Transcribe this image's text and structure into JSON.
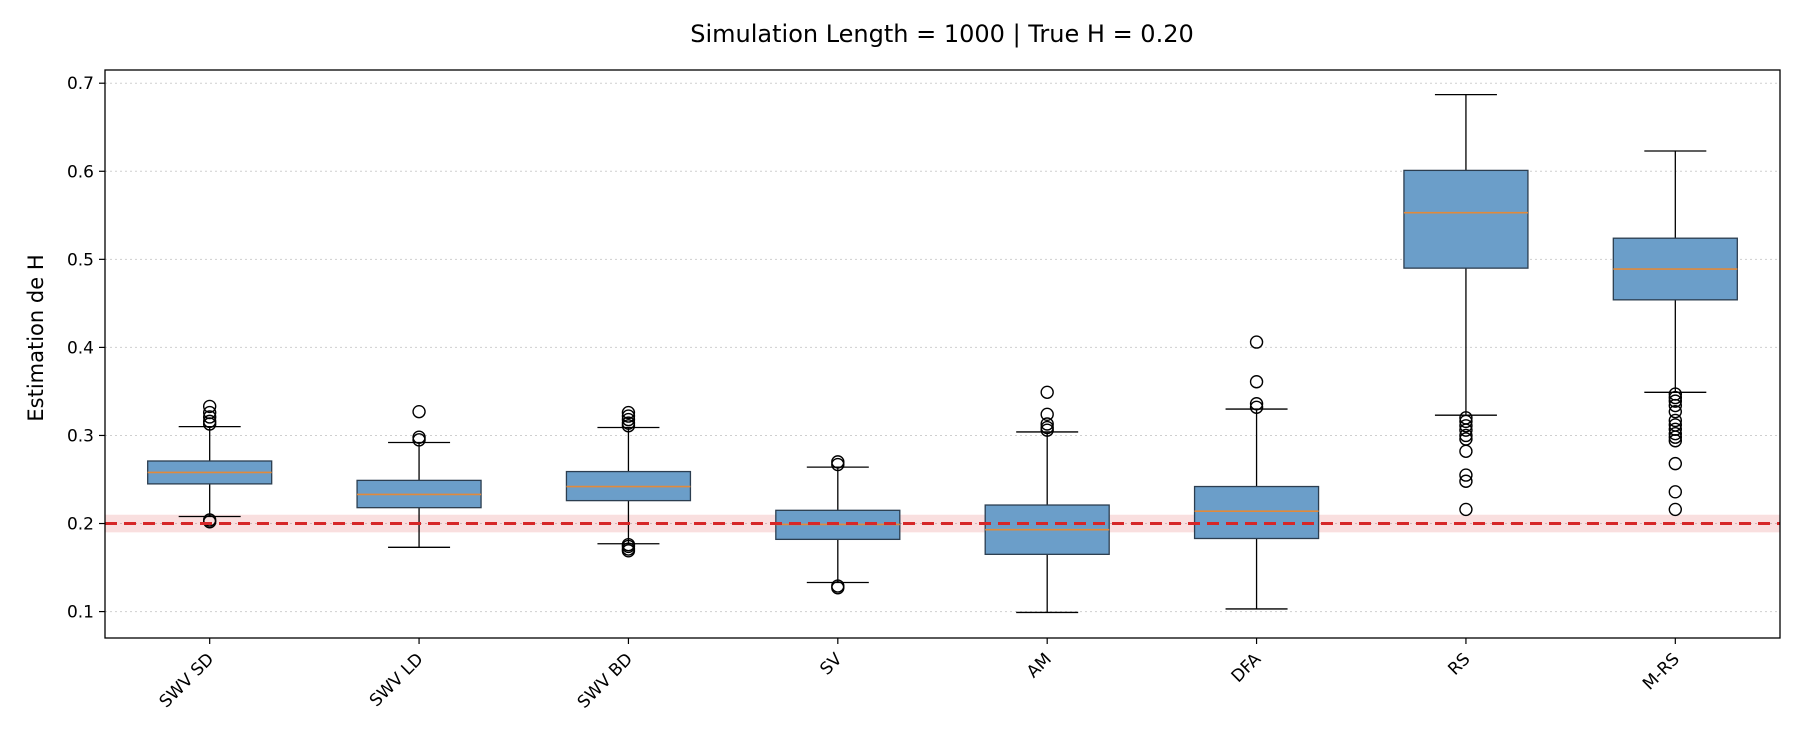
{
  "chart_data": {
    "type": "box",
    "title": "Simulation Length = 1000  |  True H = 0.20",
    "xlabel": "",
    "ylabel": "Estimation de H",
    "ylim": [
      0.07,
      0.715
    ],
    "yticks": [
      "0.1",
      "0.2",
      "0.3",
      "0.4",
      "0.5",
      "0.6",
      "0.7"
    ],
    "grid": "horizontal-dotted",
    "reference_line": {
      "value": 0.2,
      "band": [
        0.19,
        0.21
      ],
      "color": "#d62728",
      "style": "dashed"
    },
    "box_color": "#6b9ec9",
    "median_color": "#e08a3c",
    "categories": [
      "SWV SD",
      "SWV LD",
      "SWV BD",
      "SV",
      "AM",
      "DFA",
      "RS",
      "M-RS"
    ],
    "boxes": [
      {
        "label": "SWV SD",
        "whislo": 0.208,
        "q1": 0.245,
        "med": 0.258,
        "q3": 0.271,
        "whishi": 0.31,
        "fliers": [
          0.204,
          0.202,
          0.313,
          0.316,
          0.321,
          0.326,
          0.333
        ]
      },
      {
        "label": "SWV LD",
        "whislo": 0.173,
        "q1": 0.218,
        "med": 0.233,
        "q3": 0.249,
        "whishi": 0.292,
        "fliers": [
          0.295,
          0.298,
          0.327
        ]
      },
      {
        "label": "SWV BD",
        "whislo": 0.177,
        "q1": 0.226,
        "med": 0.242,
        "q3": 0.259,
        "whishi": 0.309,
        "fliers": [
          0.169,
          0.171,
          0.174,
          0.176,
          0.311,
          0.314,
          0.318,
          0.322,
          0.326
        ]
      },
      {
        "label": "SV",
        "whislo": 0.133,
        "q1": 0.182,
        "med": 0.199,
        "q3": 0.215,
        "whishi": 0.264,
        "fliers": [
          0.127,
          0.129,
          0.267,
          0.27
        ]
      },
      {
        "label": "AM",
        "whislo": 0.099,
        "q1": 0.165,
        "med": 0.193,
        "q3": 0.221,
        "whishi": 0.304,
        "fliers": [
          0.306,
          0.309,
          0.313,
          0.324,
          0.349
        ]
      },
      {
        "label": "DFA",
        "whislo": 0.103,
        "q1": 0.183,
        "med": 0.214,
        "q3": 0.242,
        "whishi": 0.33,
        "fliers": [
          0.332,
          0.336,
          0.361,
          0.406
        ]
      },
      {
        "label": "RS",
        "whislo": 0.323,
        "q1": 0.49,
        "med": 0.553,
        "q3": 0.601,
        "whishi": 0.687,
        "fliers": [
          0.32,
          0.316,
          0.311,
          0.306,
          0.3,
          0.296,
          0.282,
          0.255,
          0.248,
          0.216
        ]
      },
      {
        "label": "M-RS",
        "whislo": 0.349,
        "q1": 0.454,
        "med": 0.489,
        "q3": 0.524,
        "whishi": 0.623,
        "fliers": [
          0.347,
          0.343,
          0.339,
          0.334,
          0.327,
          0.317,
          0.312,
          0.307,
          0.302,
          0.298,
          0.294,
          0.268,
          0.236,
          0.216
        ]
      }
    ]
  }
}
